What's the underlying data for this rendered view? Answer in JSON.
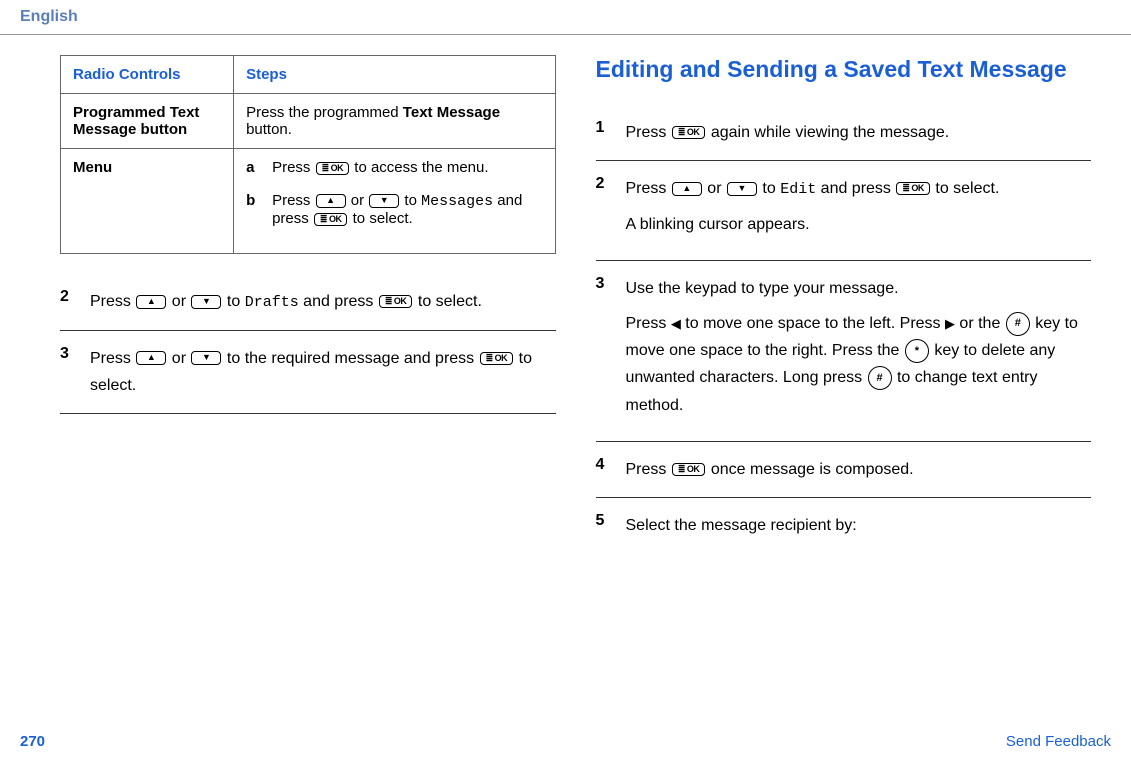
{
  "header": {
    "language": "English"
  },
  "left": {
    "table": {
      "col1": "Radio Controls",
      "col2": "Steps",
      "row1": {
        "label": "Programmed Text Message button",
        "text_prefix": "Press the programmed ",
        "text_bold": "Text Message",
        "text_suffix": " button."
      },
      "row2": {
        "label": "Menu",
        "a_letter": "a",
        "a_text_prefix": "Press ",
        "a_text_suffix": " to access the menu.",
        "b_letter": "b",
        "b_text_prefix": "Press ",
        "b_text_mid1": " or ",
        "b_text_mid2": " to ",
        "b_mono": "Messages",
        "b_text_mid3": " and press ",
        "b_text_suffix": " to select."
      }
    },
    "step2": {
      "num": "2",
      "prefix": "Press ",
      "mid1": " or ",
      "mid2": " to ",
      "mono": "Drafts",
      "mid3": " and press ",
      "suffix": " to select."
    },
    "step3": {
      "num": "3",
      "prefix": "Press ",
      "mid1": " or ",
      "mid2": " to the required message and press ",
      "suffix": " to select."
    }
  },
  "right": {
    "title": "Editing and Sending a Saved Text Message",
    "step1": {
      "num": "1",
      "prefix": "Press ",
      "suffix": " again while viewing the message."
    },
    "step2": {
      "num": "2",
      "prefix": "Press ",
      "mid1": " or ",
      "mid2": " to ",
      "mono": "Edit",
      "mid3": " and press ",
      "suffix": " to select.",
      "extra": "A blinking cursor appears."
    },
    "step3": {
      "num": "3",
      "line1": "Use the keypad to type your message.",
      "p2a": "Press ",
      "p2b": " to move one space to the left. Press ",
      "p2c": " or the ",
      "p2d": " key to move one space to the right. Press the ",
      "p2e": " key to delete any unwanted characters. Long press ",
      "p2f": " to change text entry method.",
      "key_hash": "#",
      "key_star": "*"
    },
    "step4": {
      "num": "4",
      "prefix": "Press ",
      "suffix": " once message is composed."
    },
    "step5": {
      "num": "5",
      "text": "Select the message recipient by:"
    }
  },
  "keys": {
    "ok": "≣ OK"
  },
  "footer": {
    "page": "270",
    "feedback": "Send Feedback"
  }
}
